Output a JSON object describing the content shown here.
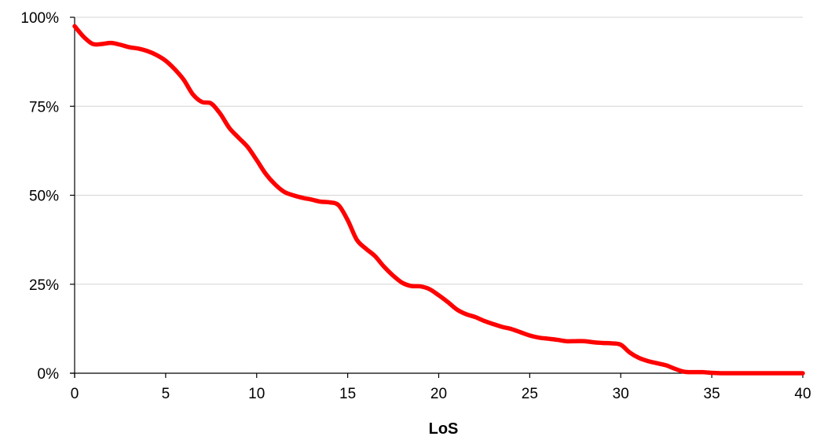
{
  "chart_data": {
    "type": "line",
    "title": "",
    "xlabel": "LoS",
    "ylabel": "",
    "xlim": [
      0,
      40
    ],
    "ylim": [
      0,
      100
    ],
    "x_ticks": [
      0,
      5,
      10,
      15,
      20,
      25,
      30,
      35,
      40
    ],
    "x_tick_labels": [
      "0",
      "5",
      "10",
      "15",
      "20",
      "25",
      "30",
      "35",
      "40"
    ],
    "y_ticks": [
      0,
      25,
      50,
      75,
      100
    ],
    "y_tick_labels": [
      "0%",
      "25%",
      "50%",
      "75%",
      "100%"
    ],
    "grid": "horizontal",
    "legend": "none",
    "series": [
      {
        "color": "#ff0000",
        "x": [
          0,
          0.5,
          1,
          1.5,
          2,
          2.5,
          3,
          3.5,
          4,
          4.5,
          5,
          5.5,
          6,
          6.5,
          7,
          7.5,
          8,
          8.5,
          9,
          9.5,
          10,
          10.5,
          11,
          11.5,
          12,
          12.5,
          13,
          13.5,
          14,
          14.5,
          15,
          15.5,
          16,
          16.5,
          17,
          17.5,
          18,
          18.5,
          19,
          19.5,
          20,
          20.5,
          21,
          21.5,
          22,
          22.5,
          23,
          23.5,
          24,
          24.5,
          25,
          25.5,
          26,
          26.5,
          27,
          27.5,
          28,
          28.5,
          29,
          29.5,
          30,
          30.5,
          31,
          31.5,
          32,
          32.5,
          33,
          33.5,
          34,
          34.5,
          35,
          35.5,
          36,
          36.5,
          37,
          37.5,
          38,
          38.5,
          39,
          39.5,
          40
        ],
        "y": [
          97.5,
          94.5,
          92.5,
          92.5,
          92.8,
          92.3,
          91.6,
          91.2,
          90.5,
          89.4,
          87.8,
          85.4,
          82.4,
          78.3,
          76.2,
          75.8,
          72.9,
          68.9,
          66.2,
          63.6,
          59.9,
          56.0,
          53.1,
          51.0,
          50.0,
          49.3,
          48.8,
          48.2,
          48.0,
          47.2,
          43.0,
          37.5,
          35.0,
          32.9,
          29.9,
          27.4,
          25.4,
          24.5,
          24.4,
          23.6,
          21.9,
          20.0,
          17.9,
          16.6,
          15.8,
          14.7,
          13.8,
          13.0,
          12.4,
          11.5,
          10.6,
          10.0,
          9.7,
          9.4,
          9.0,
          9.0,
          9.0,
          8.7,
          8.5,
          8.4,
          8.0,
          5.8,
          4.3,
          3.4,
          2.8,
          2.2,
          1.2,
          0.4,
          0.3,
          0.3,
          0.1,
          0.0,
          0.0,
          0.0,
          0.0,
          0.0,
          0.0,
          0.0,
          0.0,
          0.0,
          0.0
        ]
      }
    ]
  }
}
